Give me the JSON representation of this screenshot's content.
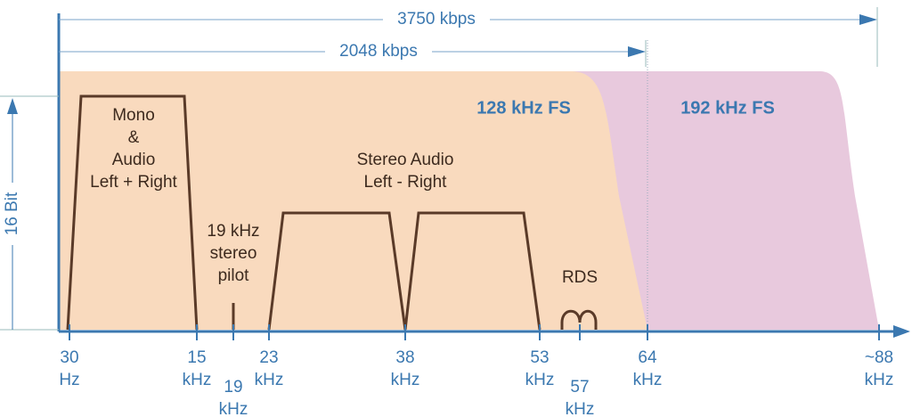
{
  "top_rates": [
    "3750 kbps",
    "2048 kbps"
  ],
  "y_label": "16 Bit",
  "regions": [
    "128 kHz FS",
    "192 kHz FS"
  ],
  "bands": {
    "mono": [
      "Mono",
      "&",
      "Audio",
      "Left + Right"
    ],
    "pilot": [
      "19 kHz",
      "stereo",
      "pilot"
    ],
    "stereo": [
      "Stereo Audio",
      "Left - Right"
    ],
    "rds": "RDS"
  },
  "x_labels": [
    [
      "30",
      "Hz"
    ],
    [
      "15",
      "kHz"
    ],
    [
      "19",
      "kHz"
    ],
    [
      "23",
      "kHz"
    ],
    [
      "38",
      "kHz"
    ],
    [
      "53",
      "kHz"
    ],
    [
      "57",
      "kHz"
    ],
    [
      "64",
      "kHz"
    ],
    [
      "~88",
      "kHz"
    ]
  ]
}
